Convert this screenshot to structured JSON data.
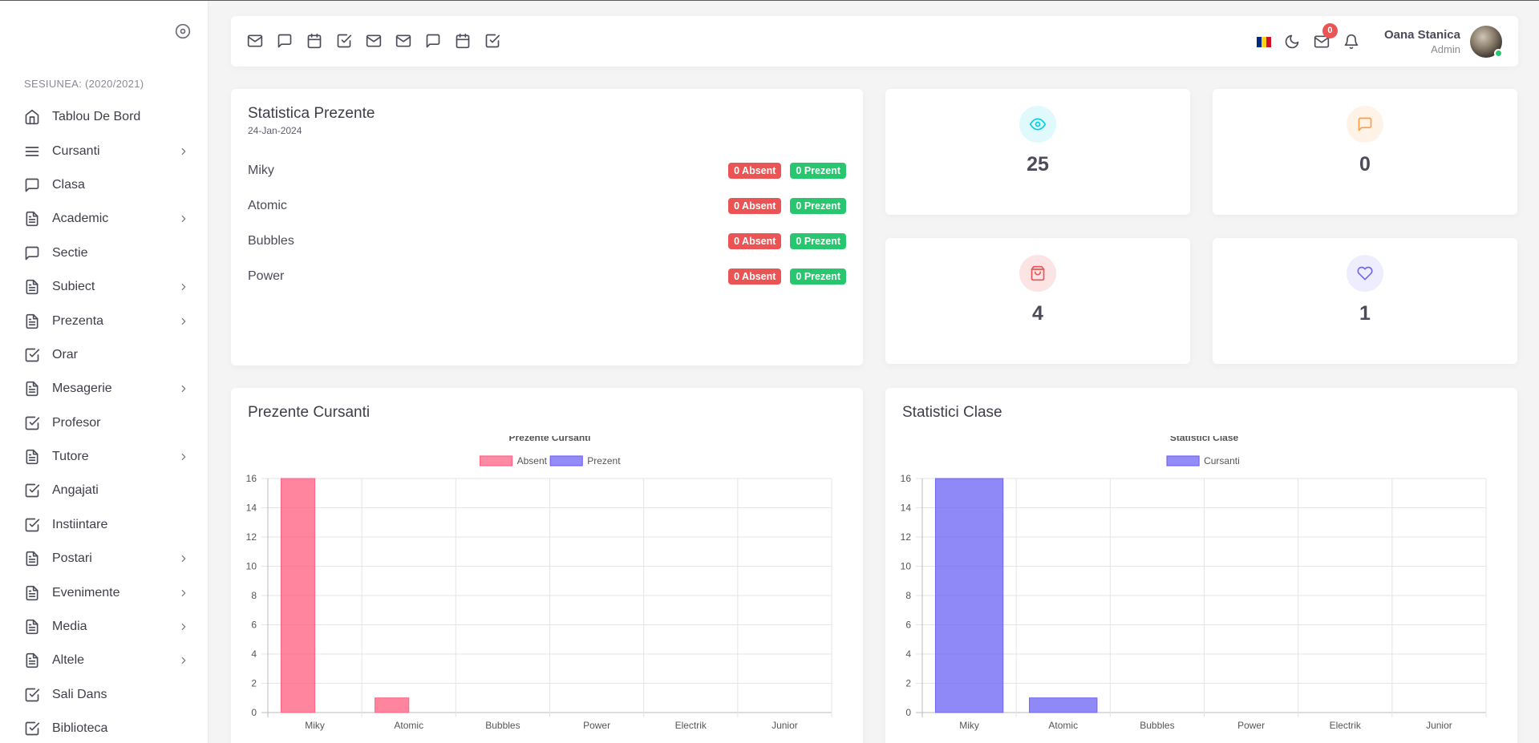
{
  "sidebar": {
    "session_label": "SESIUNEA: (2020/2021)",
    "items": [
      {
        "label": "Tablou De Bord",
        "icon": "home-icon",
        "has_children": false
      },
      {
        "label": "Cursanti",
        "icon": "menu-icon",
        "has_children": true
      },
      {
        "label": "Clasa",
        "icon": "message-square-icon",
        "has_children": false
      },
      {
        "label": "Academic",
        "icon": "file-text-icon",
        "has_children": true
      },
      {
        "label": "Sectie",
        "icon": "message-square-icon",
        "has_children": false
      },
      {
        "label": "Subiect",
        "icon": "file-text-icon",
        "has_children": true
      },
      {
        "label": "Prezenta",
        "icon": "file-text-icon",
        "has_children": true
      },
      {
        "label": "Orar",
        "icon": "check-square-icon",
        "has_children": false
      },
      {
        "label": "Mesagerie",
        "icon": "file-text-icon",
        "has_children": true
      },
      {
        "label": "Profesor",
        "icon": "check-square-icon",
        "has_children": false
      },
      {
        "label": "Tutore",
        "icon": "file-text-icon",
        "has_children": true
      },
      {
        "label": "Angajati",
        "icon": "check-square-icon",
        "has_children": false
      },
      {
        "label": "Instiintare",
        "icon": "check-square-icon",
        "has_children": false
      },
      {
        "label": "Postari",
        "icon": "file-text-icon",
        "has_children": true
      },
      {
        "label": "Evenimente",
        "icon": "file-text-icon",
        "has_children": true
      },
      {
        "label": "Media",
        "icon": "file-text-icon",
        "has_children": true
      },
      {
        "label": "Altele",
        "icon": "file-text-icon",
        "has_children": true
      },
      {
        "label": "Sali Dans",
        "icon": "check-square-icon",
        "has_children": false
      },
      {
        "label": "Biblioteca",
        "icon": "check-square-icon",
        "has_children": false
      }
    ]
  },
  "topbar": {
    "shortcuts": [
      "mail-icon",
      "message-square-icon",
      "calendar-icon",
      "check-square-icon",
      "mail-icon",
      "mail-icon",
      "message-square-icon",
      "calendar-icon",
      "check-square-icon"
    ],
    "mail_count": "0",
    "user_name": "Oana Stanica",
    "user_role": "Admin",
    "flag_colors": [
      "#002b7f",
      "#fcd116",
      "#ce1126"
    ]
  },
  "attendance": {
    "title": "Statistica Prezente",
    "date": "24-Jan-2024",
    "rows": [
      {
        "name": "Miky",
        "absent": "0 Absent",
        "present": "0 Prezent"
      },
      {
        "name": "Atomic",
        "absent": "0 Absent",
        "present": "0 Prezent"
      },
      {
        "name": "Bubbles",
        "absent": "0 Absent",
        "present": "0 Prezent"
      },
      {
        "name": "Power",
        "absent": "0 Absent",
        "present": "0 Prezent"
      }
    ]
  },
  "stats": [
    {
      "value": "25",
      "icon": "eye-icon",
      "color": "#00cfe8",
      "bg": "#e0f9fc"
    },
    {
      "value": "0",
      "icon": "message-square-icon",
      "color": "#ff9f43",
      "bg": "#fff3e8"
    },
    {
      "value": "4",
      "icon": "shopping-bag-icon",
      "color": "#ea5455",
      "bg": "#fce4e4"
    },
    {
      "value": "1",
      "icon": "heart-icon",
      "color": "#7367f0",
      "bg": "#eeedfd"
    }
  ],
  "charts": {
    "attendance_card_title": "Prezente Cursanti",
    "classes_card_title": "Statistici Clase"
  },
  "chart_data": [
    {
      "type": "bar",
      "title": "Prezente Cursanti",
      "categories": [
        "Miky",
        "Atomic",
        "Bubbles",
        "Power",
        "Electrik",
        "Junior"
      ],
      "series": [
        {
          "name": "Absent",
          "values": [
            16,
            1,
            0,
            0,
            0,
            0
          ],
          "color": "#ff6384"
        },
        {
          "name": "Prezent",
          "values": [
            0,
            0,
            0,
            0,
            0,
            0
          ],
          "color": "#6f66f5"
        }
      ],
      "yticks": [
        0,
        2,
        4,
        6,
        8,
        10,
        12,
        14,
        16
      ],
      "ylim": [
        0,
        16
      ],
      "legend": "top",
      "grid": true
    },
    {
      "type": "bar",
      "title": "Statistici Clase",
      "categories": [
        "Miky",
        "Atomic",
        "Bubbles",
        "Power",
        "Electrik",
        "Junior"
      ],
      "series": [
        {
          "name": "Cursanti",
          "values": [
            16,
            1,
            0,
            0,
            0,
            0
          ],
          "color": "#6f66f5"
        }
      ],
      "yticks": [
        0,
        2,
        4,
        6,
        8,
        10,
        12,
        14,
        16
      ],
      "ylim": [
        0,
        16
      ],
      "legend": "top",
      "grid": true
    }
  ]
}
